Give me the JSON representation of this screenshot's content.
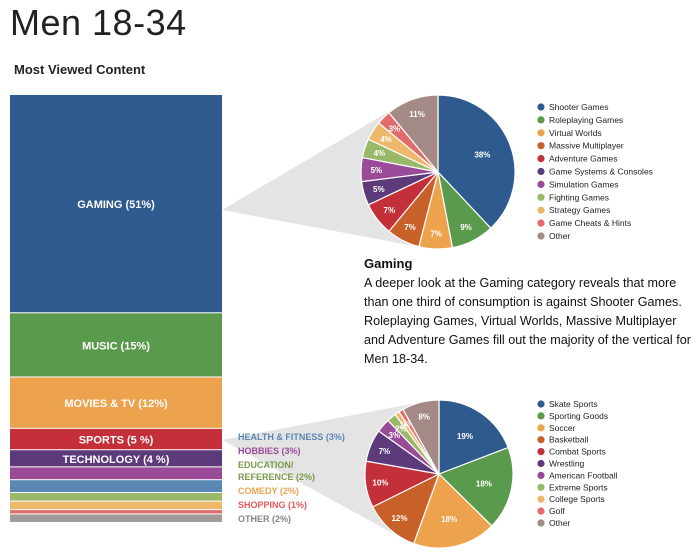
{
  "title": "Men 18-34",
  "subtitle": "Most Viewed Content",
  "gaming_heading": "Gaming",
  "gaming_text": "A deeper look at the Gaming category reveals that more than one third of consumption is against Shooter Games. Roleplaying Games, Virtual Worlds, Massive Multiplayer and Adventure Games fill out the majority of the vertical for Men 18-34.",
  "chart_data": [
    {
      "type": "bar",
      "title": "Most Viewed Content",
      "categories": [
        "GAMING (51%)",
        "MUSIC (15%)",
        "MOVIES & TV (12%)",
        "SPORTS (5 %)",
        "TECHNOLOGY (4 %)",
        "HEALTH & FITNESS (3%)",
        "HOBBIES (3%)",
        "EDUCATION/ REFERENCE (2%)",
        "COMEDY (2%)",
        "SHOPPING (1%)",
        "OTHER (2%)"
      ],
      "values": [
        51,
        15,
        12,
        5,
        4,
        3,
        3,
        2,
        2,
        1,
        2
      ],
      "colors": [
        "#2e5a8e",
        "#5a9a4c",
        "#eda24d",
        "#c4303a",
        "#5d3a7a",
        "#9a4b97",
        "#5a88b4",
        "#9ab86a",
        "#eeb86b",
        "#e26b6b",
        "#a09a98"
      ],
      "label_text_colors": [
        "#ffffff",
        "#ffffff",
        "#ffffff",
        "#ffffff",
        "#ffffff",
        "#5a88b4",
        "#9a4b97",
        "#7a9a4a",
        "#e8a24d",
        "#e05a5a",
        "#8a8483"
      ]
    },
    {
      "type": "pie",
      "labels": [
        "Shooter Games",
        "Roleplaying Games",
        "Virtual Worlds",
        "Massive Multiplayer",
        "Adventure Games",
        "Game Systems & Consoles",
        "Simulation Games",
        "Fighting Games",
        "Strategy Games",
        "Game Cheats & Hints",
        "Other"
      ],
      "values": [
        38,
        9,
        7,
        7,
        7,
        5,
        5,
        4,
        4,
        3,
        11
      ],
      "value_labels": [
        "38%",
        "9%",
        "7%",
        "7%",
        "7%",
        "5%",
        "5%",
        "4%",
        "4%",
        "3%",
        "11%"
      ],
      "colors": [
        "#2e5a8e",
        "#5a9a4c",
        "#eda24d",
        "#c8602a",
        "#c4303a",
        "#5d3a7a",
        "#9a4b97",
        "#9ab86a",
        "#eeb86b",
        "#e26b6b",
        "#a38a86"
      ]
    },
    {
      "type": "pie",
      "labels": [
        "Skate Sports",
        "Sporting Goods",
        "Soccer",
        "Basketball",
        "Combat Sports",
        "Wrestling",
        "American Football",
        "Extreme Sports",
        "College Sports",
        "Golf",
        "Other"
      ],
      "values": [
        19,
        18,
        18,
        12,
        10,
        7,
        3,
        2,
        1,
        1,
        8
      ],
      "value_labels": [
        "19%",
        "18%",
        "18%",
        "12%",
        "10%",
        "7%",
        "3%",
        "2%",
        "1%",
        "1%",
        "8%"
      ],
      "colors": [
        "#2e5a8e",
        "#5a9a4c",
        "#eda24d",
        "#c8602a",
        "#c4303a",
        "#5d3a7a",
        "#9a4b97",
        "#9ab86a",
        "#eeb86b",
        "#e26b6b",
        "#a38a86"
      ]
    }
  ]
}
